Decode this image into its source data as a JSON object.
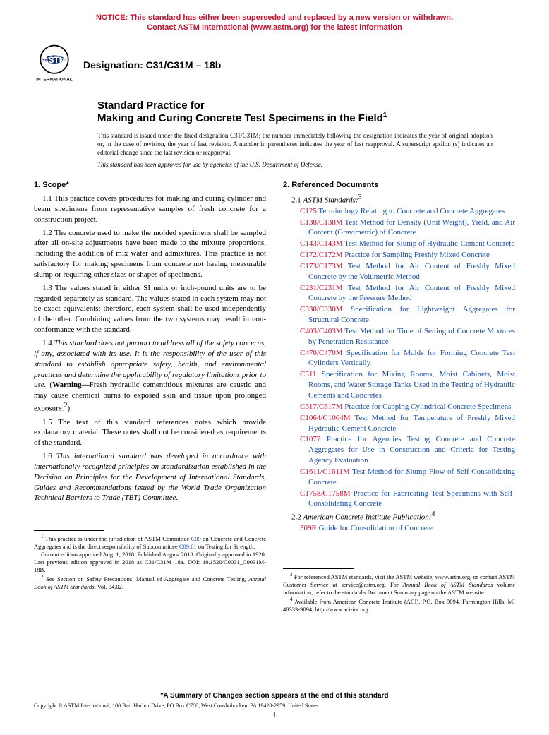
{
  "notice": {
    "line1": "NOTICE: This standard has either been superseded and replaced by a new version or withdrawn.",
    "line2": "Contact ASTM International (www.astm.org) for the latest information",
    "color": "#c8102e"
  },
  "designation_label": "Designation: C31/C31M – 18b",
  "logo": {
    "top_text": "ASTM",
    "bottom_text": "INTERNATIONAL"
  },
  "title": {
    "line1": "Standard Practice for",
    "line2": "Making and Curing Concrete Test Specimens in the Field",
    "sup": "1"
  },
  "issuance_text": "This standard is issued under the fixed designation C31/C31M; the number immediately following the designation indicates the year of original adoption or, in the case of revision, the year of last revision. A number in parentheses indicates the year of last reapproval. A superscript epsilon (ε) indicates an editorial change since the last revision or reapproval.",
  "approval_text": "This standard has been approved for use by agencies of the U.S. Department of Defense.",
  "scope": {
    "head": "1. Scope*",
    "p1": "1.1 This practice covers procedures for making and curing cylinder and beam specimens from representative samples of fresh concrete for a construction project.",
    "p2": "1.2 The concrete used to make the molded specimens shall be sampled after all on-site adjustments have been made to the mixture proportions, including the addition of mix water and admixtures. This practice is not satisfactory for making specimens from concrete not having measurable slump or requiring other sizes or shapes of specimens.",
    "p3": "1.3 The values stated in either SI units or inch-pound units are to be regarded separately as standard. The values stated in each system may not be exact equivalents; therefore, each system shall be used independently of the other. Combining values from the two systems may result in non-conformance with the standard.",
    "p4a": "1.4 ",
    "p4b": "This standard does not purport to address all of the safety concerns, if any, associated with its use. It is the responsibility of the user of this standard to establish appropriate safety, health, and environmental practices and determine the applicability of regulatory limitations prior to use.",
    "p4c": " (",
    "p4d": "Warning—",
    "p4e": "Fresh hydraulic cementitious mixtures are caustic and may cause chemical burns to exposed skin and tissue upon prolonged exposure.",
    "p4f": "2",
    "p4g": ")",
    "p5": "1.5 The text of this standard references notes which provide explanatory material. These notes shall not be considered as requirements of the standard.",
    "p6a": "1.6 ",
    "p6b": "This international standard was developed in accordance with internationally recognized principles on standardization established in the Decision on Principles for the Development of International Standards, Guides and Recommendations issued by the World Trade Organization Technical Barriers to Trade (TBT) Committee."
  },
  "refdocs": {
    "head": "2. Referenced Documents",
    "sub1a": "2.1 ",
    "sub1b": "ASTM Standards:",
    "sub1c": "3",
    "items": [
      {
        "code": "C125",
        "title": " Terminology Relating to Concrete and Concrete Aggregates"
      },
      {
        "code": "C138/C138M",
        "title": " Test Method for Density (Unit Weight), Yield, and Air Content (Gravimetric) of Concrete"
      },
      {
        "code": "C143/C143M",
        "title": " Test Method for Slump of Hydraulic-Cement Concrete"
      },
      {
        "code": "C172/C172M",
        "title": " Practice for Sampling Freshly Mixed Concrete"
      },
      {
        "code": "C173/C173M",
        "title": " Test Method for Air Content of Freshly Mixed Concrete by the Volumetric Method"
      },
      {
        "code": "C231/C231M",
        "title": " Test Method for Air Content of Freshly Mixed Concrete by the Pressure Method"
      },
      {
        "code": "C330/C330M",
        "title": " Specification for Lightweight Aggregates for Structural Concrete"
      },
      {
        "code": "C403/C403M",
        "title": " Test Method for Time of Setting of Concrete Mixtures by Penetration Resistance"
      },
      {
        "code": "C470/C470M",
        "title": " Specification for Molds for Forming Concrete Test Cylinders Vertically"
      },
      {
        "code": "C511",
        "title": " Specification for Mixing Rooms, Moist Cabinets, Moist Rooms, and Water Storage Tanks Used in the Testing of Hydraulic Cements and Concretes"
      },
      {
        "code": "C617/C617M",
        "title": " Practice for Capping Cylindrical Concrete Specimens"
      },
      {
        "code": "C1064/C1064M",
        "title": " Test Method for Temperature of Freshly Mixed Hydraulic-Cement Concrete"
      },
      {
        "code": "C1077",
        "title": " Practice for Agencies Testing Concrete and Concrete Aggregates for Use in Construction and Criteria for Testing Agency Evaluation"
      },
      {
        "code": "C1611/C1611M",
        "title": " Test Method for Slump Flow of Self-Consolidating Concrete"
      },
      {
        "code": "C1758/C1758M",
        "title": " Practice for Fabricating Test Specimens with Self-Consolidating Concrete"
      }
    ],
    "sub2a": "2.2 ",
    "sub2b": "American Concrete Institute Publication:",
    "sub2c": "4",
    "aci_code": "309R",
    "aci_title": " Guide for Consolidation of Concrete"
  },
  "footnotes_left": {
    "f1a": "1",
    "f1b": " This practice is under the jurisdiction of ASTM Committee ",
    "f1c": "C09",
    "f1d": " on Concrete and Concrete Aggregates and is the direct responsibility of Subcommittee ",
    "f1e": "C09.61",
    "f1f": " on Testing for Strength.",
    "f1g": "Current edition approved Aug. 1, 2018. Published August 2018. Originally approved in 1920. Last previous edition approved in 2018 as C31/C31M–18a. DOI: 10.1520/C0031_C0031M-18B.",
    "f2a": "2",
    "f2b": " See Section on Safety Precautions, Manual of Aggregate and Concrete Testing, ",
    "f2c": "Annual Book of ASTM Standards",
    "f2d": ", Vol. 04.02."
  },
  "footnotes_right": {
    "f3a": "3",
    "f3b": " For referenced ASTM standards, visit the ASTM website, www.astm.org, or contact ASTM Customer Service at service@astm.org. For ",
    "f3c": "Annual Book of ASTM Standards",
    "f3d": " volume information, refer to the standard's Document Summary page on the ASTM website.",
    "f4a": "4",
    "f4b": " Available from American Concrete Institute (ACI), P.O. Box 9094, Farmington Hills, MI 48333-9094, http://www.aci-int.org."
  },
  "summary_line": "*A Summary of Changes section appears at the end of this standard",
  "copyright": "Copyright © ASTM International, 100 Barr Harbor Drive, PO Box C700, West Conshohocken, PA 19428-2959. United States",
  "page_number": "1",
  "colors": {
    "notice_red": "#c8102e",
    "link_blue": "#1a4fa3",
    "code_red": "#c8102e"
  }
}
